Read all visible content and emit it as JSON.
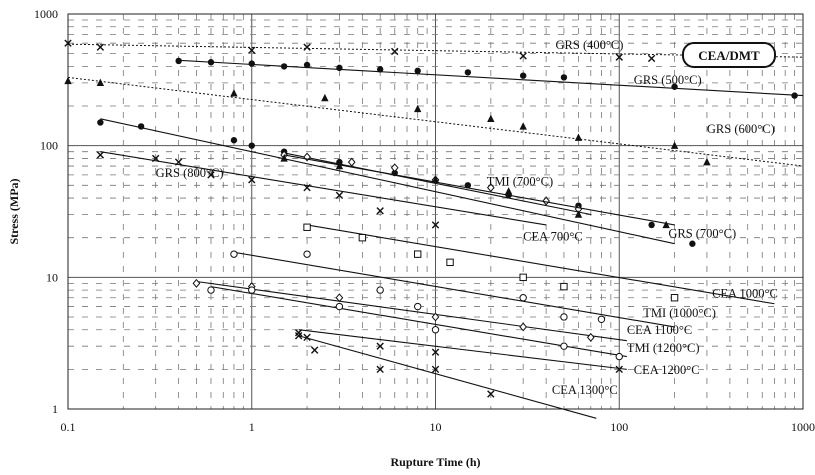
{
  "chart_data": {
    "type": "scatter",
    "xscale": "log",
    "yscale": "log",
    "xlim": [
      0.1,
      1000
    ],
    "ylim": [
      1,
      1000
    ],
    "grid": true,
    "xlabel": "Rupture Time (h)",
    "ylabel": "Stress (MPa)",
    "x_tick_labels": [
      "0.1",
      "1",
      "10",
      "100",
      "1000"
    ],
    "y_tick_labels": [
      "1",
      "10",
      "100",
      "1000"
    ],
    "badge": "CEA/DMT",
    "series": [
      {
        "name": "GRS (400°C)",
        "line_style": "dotted",
        "marker": "x",
        "fit": [
          [
            0.1,
            590
          ],
          [
            1000,
            470
          ]
        ],
        "points": [
          [
            0.1,
            600
          ],
          [
            0.15,
            560
          ],
          [
            1.0,
            530
          ],
          [
            2.0,
            560
          ],
          [
            6.0,
            520
          ],
          [
            30.0,
            480
          ],
          [
            100.0,
            470
          ],
          [
            150.0,
            460
          ]
        ],
        "label_x": 45,
        "label_y": 540
      },
      {
        "name": "GRS (500°C)",
        "line_style": "solid",
        "marker": "dot",
        "fit": [
          [
            0.4,
            445
          ],
          [
            1000,
            240
          ]
        ],
        "points": [
          [
            0.4,
            440
          ],
          [
            0.6,
            430
          ],
          [
            1.0,
            420
          ],
          [
            1.5,
            400
          ],
          [
            2.0,
            410
          ],
          [
            3.0,
            390
          ],
          [
            5.0,
            380
          ],
          [
            8.0,
            370
          ],
          [
            15.0,
            360
          ],
          [
            30.0,
            340
          ],
          [
            50.0,
            330
          ],
          [
            200.0,
            280
          ],
          [
            900.0,
            240
          ]
        ],
        "label_x": 120,
        "label_y": 295
      },
      {
        "name": "GRS (600°C)",
        "line_style": "dotted",
        "marker": "triangle",
        "fit": [
          [
            0.1,
            330
          ],
          [
            1000,
            70
          ]
        ],
        "points": [
          [
            0.1,
            310
          ],
          [
            0.15,
            300
          ],
          [
            0.8,
            250
          ],
          [
            2.5,
            230
          ],
          [
            8.0,
            190
          ],
          [
            20.0,
            160
          ],
          [
            30.0,
            140
          ],
          [
            60.0,
            115
          ],
          [
            200.0,
            100
          ],
          [
            300.0,
            75
          ]
        ],
        "label_x": 300,
        "label_y": 125
      },
      {
        "name": "GRS (800°C)",
        "line_style": "solid",
        "marker": "x",
        "fit": [
          [
            0.15,
            90
          ],
          [
            40,
            25
          ]
        ],
        "points": [
          [
            0.15,
            85
          ],
          [
            0.3,
            80
          ],
          [
            0.4,
            75
          ],
          [
            0.6,
            60
          ],
          [
            1.0,
            55
          ],
          [
            2.0,
            48
          ],
          [
            3.0,
            42
          ],
          [
            5.0,
            32
          ],
          [
            10.0,
            25
          ]
        ],
        "label_x": 0.3,
        "label_y": 58
      },
      {
        "name": "GRS (700°C)",
        "line_style": "solid",
        "marker": "dot",
        "fit": [
          [
            0.15,
            160
          ],
          [
            200,
            18
          ]
        ],
        "points": [
          [
            0.15,
            150
          ],
          [
            0.25,
            140
          ],
          [
            0.8,
            110
          ],
          [
            1.0,
            100
          ],
          [
            1.5,
            90
          ],
          [
            3.0,
            75
          ],
          [
            6.0,
            62
          ],
          [
            15.0,
            50
          ],
          [
            25.0,
            42
          ],
          [
            60.0,
            35
          ],
          [
            150.0,
            25
          ],
          [
            250.0,
            18
          ]
        ],
        "label_x": 185,
        "label_y": 20
      },
      {
        "name": "TMI (700°C)",
        "line_style": "solid",
        "marker": "diamond",
        "fit": [
          [
            1.5,
            88
          ],
          [
            70,
            30
          ]
        ],
        "points": [
          [
            1.5,
            85
          ],
          [
            2.0,
            82
          ],
          [
            3.5,
            75
          ],
          [
            6.0,
            68
          ],
          [
            10.0,
            55
          ],
          [
            20.0,
            48
          ],
          [
            40.0,
            38
          ],
          [
            60.0,
            33
          ]
        ],
        "label_x": 19,
        "label_y": 50
      },
      {
        "name": "CEA 700°C",
        "line_style": "solid",
        "marker": "triangle",
        "fit": [
          [
            1.5,
            85
          ],
          [
            200,
            25
          ]
        ],
        "points": [
          [
            1.5,
            80
          ],
          [
            3.0,
            70
          ],
          [
            10.0,
            55
          ],
          [
            25.0,
            45
          ],
          [
            60.0,
            30
          ],
          [
            180.0,
            25
          ]
        ],
        "label_x": 30,
        "label_y": 19
      },
      {
        "name": "CEA 1000°C",
        "line_style": "solid",
        "marker": "square",
        "fit": [
          [
            2.0,
            25
          ],
          [
            700,
            6.3
          ]
        ],
        "points": [
          [
            2.0,
            24
          ],
          [
            4.0,
            20
          ],
          [
            8.0,
            15
          ],
          [
            12.0,
            13
          ],
          [
            30.0,
            10
          ],
          [
            50.0,
            8.5
          ],
          [
            200.0,
            7.0
          ]
        ],
        "label_x": 320,
        "label_y": 7
      },
      {
        "name": "TMI (1000°C)",
        "line_style": "solid",
        "marker": "circle",
        "fit": [
          [
            0.8,
            15.5
          ],
          [
            200,
            4.2
          ]
        ],
        "points": [
          [
            0.8,
            15
          ],
          [
            2.0,
            15
          ],
          [
            5.0,
            8
          ],
          [
            8.0,
            6
          ],
          [
            30.0,
            7
          ],
          [
            50.0,
            5
          ],
          [
            80.0,
            4.8
          ]
        ],
        "label_x": 135,
        "label_y": 5
      },
      {
        "name": "CEA 1100°C",
        "line_style": "solid",
        "marker": "diamond",
        "fit": [
          [
            0.5,
            9.3
          ],
          [
            110,
            3.3
          ]
        ],
        "points": [
          [
            0.5,
            9
          ],
          [
            1.0,
            8.5
          ],
          [
            3.0,
            7
          ],
          [
            10.0,
            5
          ],
          [
            30.0,
            4.2
          ],
          [
            70.0,
            3.5
          ]
        ],
        "label_x": 110,
        "label_y": 3.7
      },
      {
        "name": "TMI (1200°C)",
        "line_style": "solid",
        "marker": "circle",
        "fit": [
          [
            0.6,
            8.5
          ],
          [
            110,
            2.5
          ]
        ],
        "points": [
          [
            0.6,
            8
          ],
          [
            1.0,
            8
          ],
          [
            3.0,
            6
          ],
          [
            10.0,
            4
          ],
          [
            50.0,
            3
          ],
          [
            100.0,
            2.5
          ]
        ],
        "label_x": 110,
        "label_y": 2.7
      },
      {
        "name": "CEA 1200°C",
        "line_style": "solid",
        "marker": "x",
        "fit": [
          [
            1.8,
            4
          ],
          [
            110,
            2.0
          ]
        ],
        "points": [
          [
            1.8,
            3.8
          ],
          [
            2.0,
            3.5
          ],
          [
            5.0,
            3.0
          ],
          [
            10.0,
            2.7
          ],
          [
            100.0,
            2.0
          ]
        ],
        "label_x": 120,
        "label_y": 1.85
      },
      {
        "name": "CEA 1300°C",
        "line_style": "solid",
        "marker": "x",
        "fit": [
          [
            1.8,
            3.6
          ],
          [
            75,
            0.85
          ]
        ],
        "points": [
          [
            1.8,
            3.6
          ],
          [
            2.2,
            2.8
          ],
          [
            5.0,
            2.0
          ],
          [
            10.0,
            2.0
          ],
          [
            20.0,
            1.3
          ]
        ],
        "label_x": 43,
        "label_y": 1.3
      }
    ]
  }
}
